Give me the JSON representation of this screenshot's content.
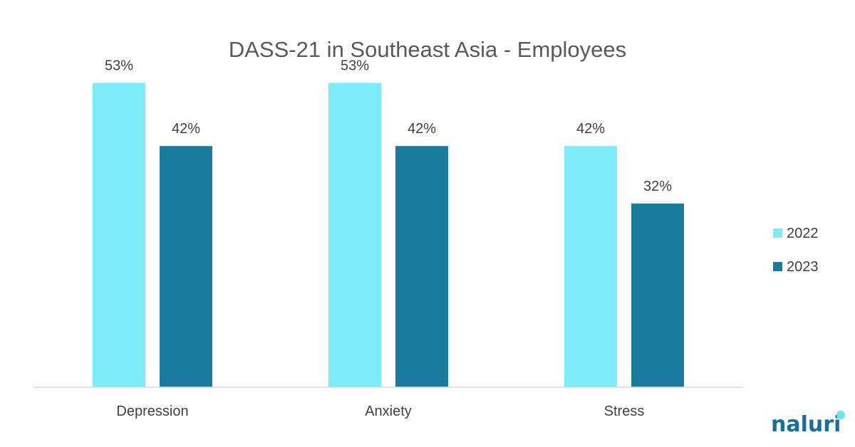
{
  "chart_data": {
    "type": "bar",
    "title": "DASS-21 in Southeast Asia - Employees",
    "categories": [
      "Depression",
      "Anxiety",
      "Stress"
    ],
    "series": [
      {
        "name": "2022",
        "values": [
          53,
          53,
          42
        ],
        "labels": [
          "53%",
          "53%",
          "42%"
        ],
        "color": "#7EEBF9"
      },
      {
        "name": "2023",
        "values": [
          42,
          42,
          32
        ],
        "labels": [
          "42%",
          "42%",
          "32%"
        ],
        "color": "#1A7B9E"
      }
    ],
    "value_unit": "%",
    "ylim": [
      0,
      60
    ],
    "grid": false,
    "y_axis_visible": false,
    "legend_position": "right"
  },
  "brand": {
    "logo_text": "naluri",
    "logo_color": "#1A6E9A",
    "logo_dot_color": "#6FE3F2"
  }
}
